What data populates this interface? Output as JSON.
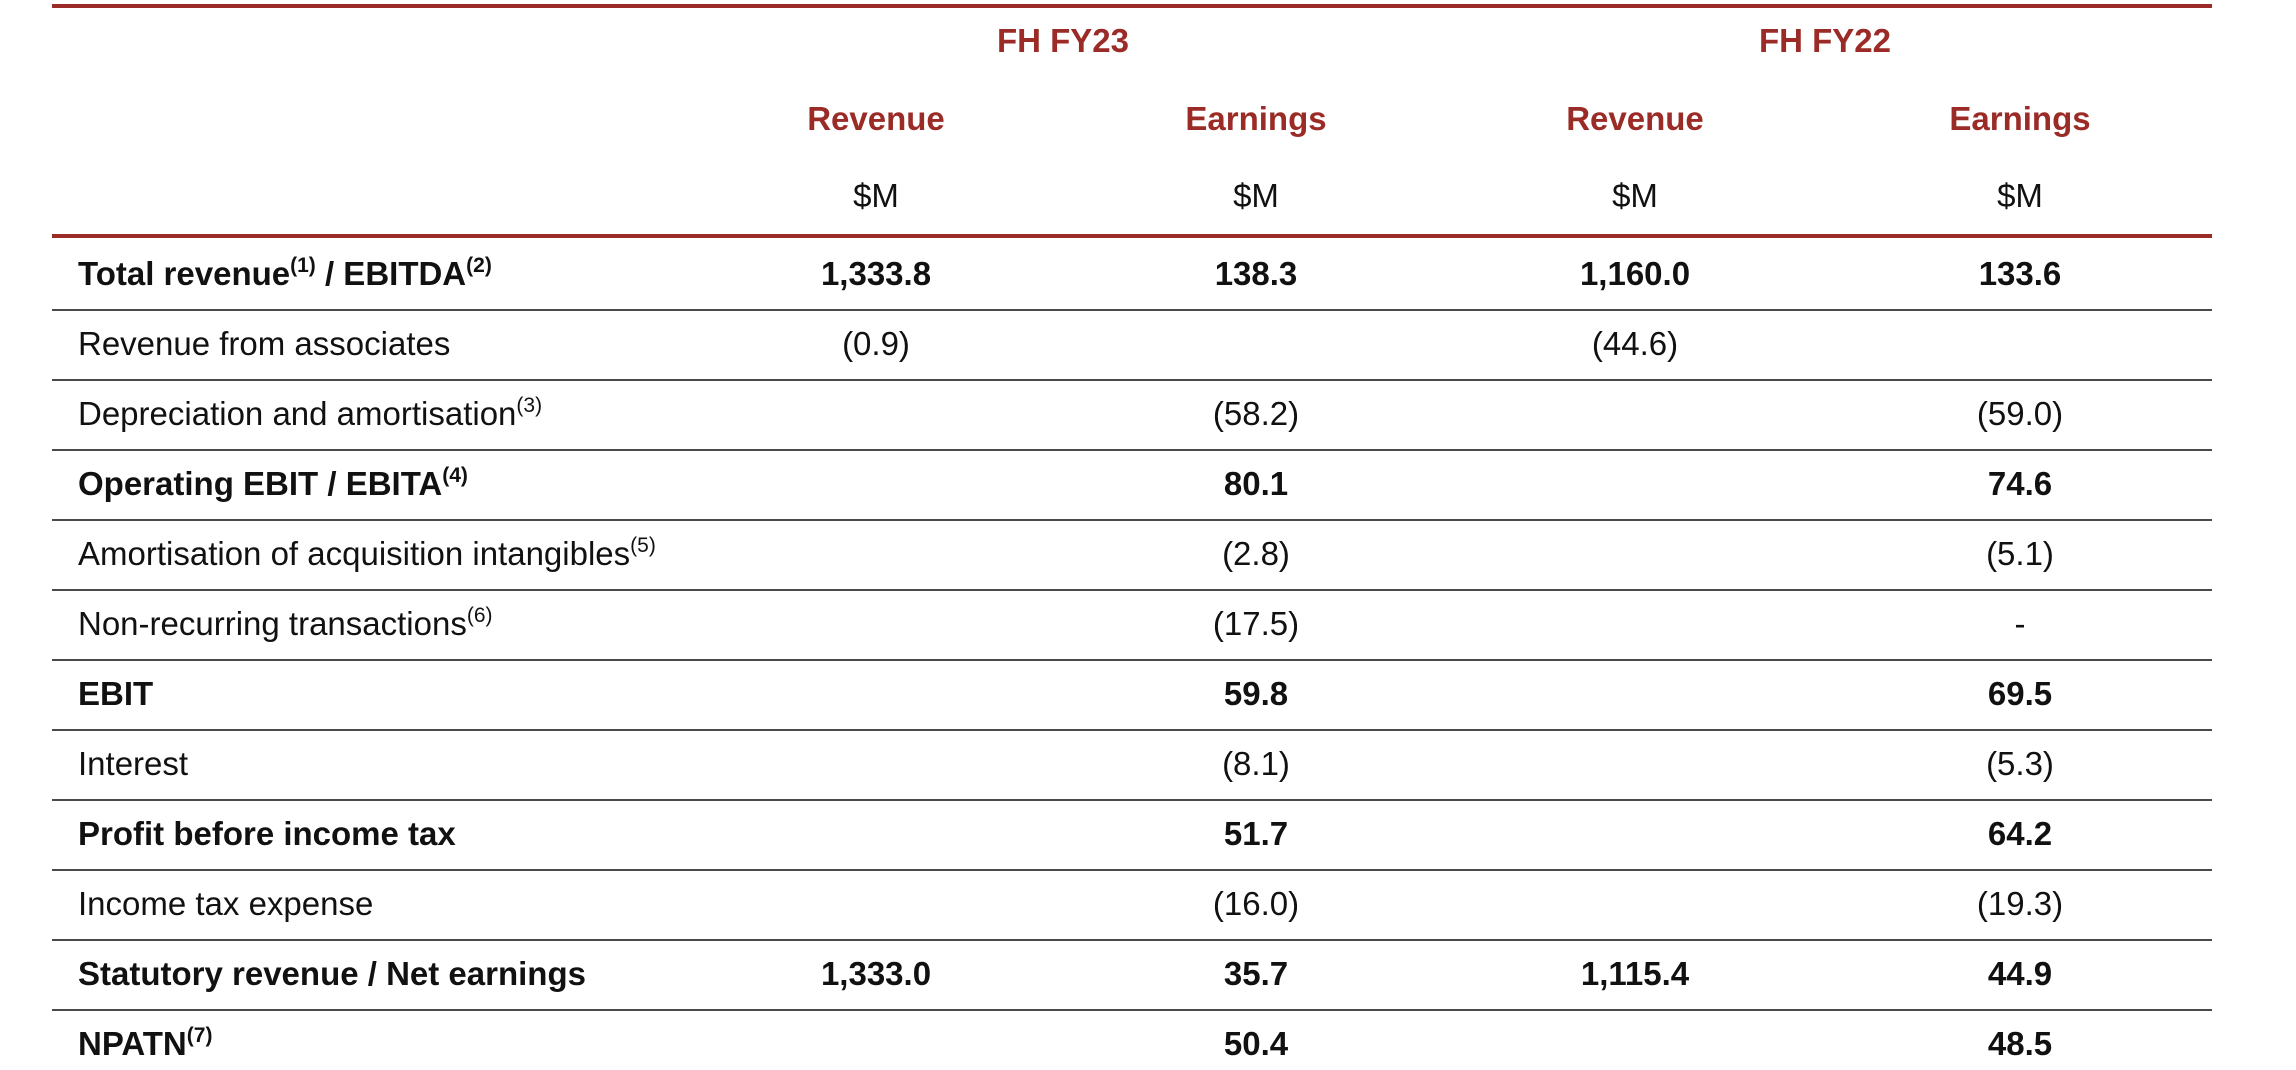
{
  "header": {
    "periods": [
      "FH FY23",
      "FH FY22"
    ],
    "columns": [
      {
        "label": "Revenue",
        "unit": "$M"
      },
      {
        "label": "Earnings",
        "unit": "$M"
      },
      {
        "label": "Revenue",
        "unit": "$M"
      },
      {
        "label": "Earnings",
        "unit": "$M"
      }
    ]
  },
  "rows": [
    {
      "label": "Total revenue",
      "label_parts": [
        {
          "t": "Total revenue"
        },
        {
          "sup": "(1)"
        },
        {
          "t": " / EBITDA"
        },
        {
          "sup": "(2)"
        }
      ],
      "bold": true,
      "values": [
        "1,333.8",
        "138.3",
        "1,160.0",
        "133.6"
      ]
    },
    {
      "label": "Revenue from associates",
      "label_parts": [
        {
          "t": "Revenue from associates"
        }
      ],
      "bold": false,
      "values": [
        "(0.9)",
        "",
        "(44.6)",
        ""
      ]
    },
    {
      "label": "Depreciation and amortisation",
      "label_parts": [
        {
          "t": "Depreciation and amortisation"
        },
        {
          "sup": "(3)"
        }
      ],
      "bold": false,
      "values": [
        "",
        "(58.2)",
        "",
        "(59.0)"
      ]
    },
    {
      "label": "Operating EBIT / EBITA",
      "label_parts": [
        {
          "t": "Operating EBIT / EBITA"
        },
        {
          "sup": "(4)"
        }
      ],
      "bold": true,
      "values": [
        "",
        "80.1",
        "",
        "74.6"
      ]
    },
    {
      "label": "Amortisation of acquisition intangibles",
      "label_parts": [
        {
          "t": "Amortisation of acquisition intangibles"
        },
        {
          "sup": "(5)"
        }
      ],
      "bold": false,
      "values": [
        "",
        "(2.8)",
        "",
        "(5.1)"
      ]
    },
    {
      "label": "Non-recurring transactions",
      "label_parts": [
        {
          "t": "Non-recurring transactions"
        },
        {
          "sup": "(6)"
        }
      ],
      "bold": false,
      "values": [
        "",
        "(17.5)",
        "",
        "-"
      ]
    },
    {
      "label": "EBIT",
      "label_parts": [
        {
          "t": "EBIT"
        }
      ],
      "bold": true,
      "values": [
        "",
        "59.8",
        "",
        "69.5"
      ]
    },
    {
      "label": "Interest",
      "label_parts": [
        {
          "t": "Interest"
        }
      ],
      "bold": false,
      "values": [
        "",
        "(8.1)",
        "",
        "(5.3)"
      ]
    },
    {
      "label": "Profit before income tax",
      "label_parts": [
        {
          "t": "Profit before income tax"
        }
      ],
      "bold": true,
      "values": [
        "",
        "51.7",
        "",
        "64.2"
      ]
    },
    {
      "label": "Income tax expense",
      "label_parts": [
        {
          "t": "Income tax expense"
        }
      ],
      "bold": false,
      "values": [
        "",
        "(16.0)",
        "",
        "(19.3)"
      ]
    },
    {
      "label": "Statutory revenue / Net earnings",
      "label_parts": [
        {
          "t": "Statutory revenue / Net earnings"
        }
      ],
      "bold": true,
      "values": [
        "1,333.0",
        "35.7",
        "1,115.4",
        "44.9"
      ]
    },
    {
      "label": "NPATN",
      "label_parts": [
        {
          "t": "NPATN"
        },
        {
          "sup": "(7)"
        }
      ],
      "bold": true,
      "values": [
        "",
        "50.4",
        "",
        "48.5"
      ]
    }
  ],
  "colors": {
    "accent": "#9b2b26",
    "rule": "#4a4a4a",
    "text": "#111111"
  }
}
